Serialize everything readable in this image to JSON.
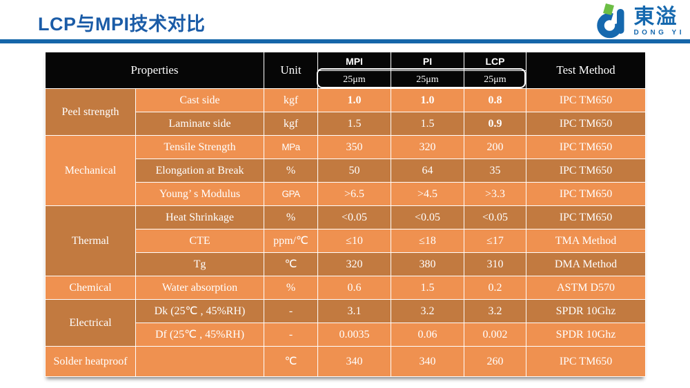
{
  "page": {
    "title": "LCP与MPI技术对比"
  },
  "logo": {
    "name": "東溢",
    "subtitle": "DONG YI"
  },
  "colors": {
    "title_blue": "#1B5CA7",
    "rule_blue": "#1566A9",
    "header_bg": "#060606",
    "row_light": "#EF9150",
    "row_dark": "#C27A40",
    "logo_blue": "#1568AE",
    "logo_green": "#6CBE45"
  },
  "table": {
    "header": {
      "properties": "Properties",
      "unit": "Unit",
      "materials": [
        {
          "name": "MPI",
          "thickness": "25μm"
        },
        {
          "name": "PI",
          "thickness": "25μm"
        },
        {
          "name": "LCP",
          "thickness": "25μm"
        }
      ],
      "test_method": "Test Method"
    },
    "rows": [
      {
        "category": "Peel strength",
        "cat_span": 2,
        "cat_shade": "dark",
        "property": "Cast side",
        "unit": "kgf",
        "mpi": "1.0",
        "pi": "1.0",
        "lcp": "0.8",
        "method": "IPC TM650",
        "shade": "light",
        "bold": [
          "mpi",
          "pi",
          "lcp"
        ]
      },
      {
        "property": "Laminate side",
        "unit": "kgf",
        "mpi": "1.5",
        "pi": "1.5",
        "lcp": "0.9",
        "method": "IPC TM650",
        "shade": "dark",
        "bold": [
          "lcp"
        ]
      },
      {
        "category": "Mechanical",
        "cat_span": 3,
        "cat_shade": "light",
        "property": "Tensile Strength",
        "unit": "MPa",
        "unit_condensed": true,
        "mpi": "350",
        "pi": "320",
        "lcp": "200",
        "method": "IPC TM650",
        "shade": "light"
      },
      {
        "property": "Elongation at Break",
        "unit": "%",
        "mpi": "50",
        "pi": "64",
        "lcp": "35",
        "method": "IPC TM650",
        "shade": "dark"
      },
      {
        "property": "Young’ s Modulus",
        "unit": "GPA",
        "unit_condensed": true,
        "mpi": ">6.5",
        "pi": ">4.5",
        "lcp": ">3.3",
        "method": "IPC TM650",
        "shade": "light"
      },
      {
        "category": "Thermal",
        "cat_span": 3,
        "cat_shade": "dark",
        "property": "Heat Shrinkage",
        "unit": "%",
        "mpi": "<0.05",
        "pi": "<0.05",
        "lcp": "<0.05",
        "method": "IPC TM650",
        "shade": "dark"
      },
      {
        "property": "CTE",
        "unit": "ppm/℃",
        "mpi": "≤10",
        "pi": "≤18",
        "lcp": "≤17",
        "method": "TMA Method",
        "shade": "light"
      },
      {
        "property": "Tg",
        "unit": "℃",
        "mpi": "320",
        "pi": "380",
        "lcp": "310",
        "method": "DMA Method",
        "shade": "dark"
      },
      {
        "category": "Chemical",
        "cat_span": 1,
        "cat_shade": "light",
        "property": "Water absorption",
        "unit": "%",
        "mpi": "0.6",
        "pi": "1.5",
        "lcp": "0.2",
        "method": "ASTM D570",
        "shade": "light"
      },
      {
        "category": "Electrical",
        "cat_span": 2,
        "cat_shade": "dark",
        "property": "Dk (25℃ , 45%RH)",
        "unit": "-",
        "mpi": "3.1",
        "pi": "3.2",
        "lcp": "3.2",
        "method": "SPDR 10Ghz",
        "shade": "dark"
      },
      {
        "property": "Df (25℃ , 45%RH)",
        "unit": "-",
        "mpi": "0.0035",
        "pi": "0.06",
        "lcp": "0.002",
        "method": "SPDR 10Ghz",
        "shade": "light"
      },
      {
        "category": "Solder heatproof",
        "cat_span": 1,
        "cat_shade": "light",
        "property": "",
        "unit": "℃",
        "mpi": "340",
        "pi": "340",
        "lcp": "260",
        "method": "IPC TM650",
        "shade": "light",
        "tall": true
      }
    ]
  }
}
